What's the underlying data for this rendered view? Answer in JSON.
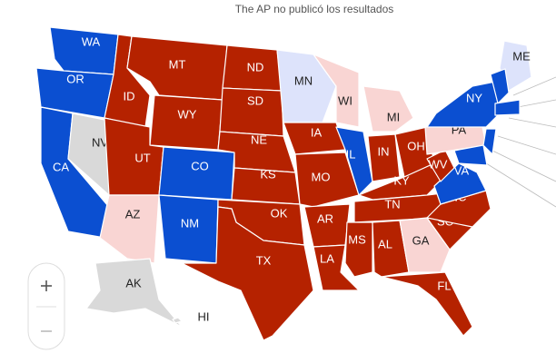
{
  "header": {
    "title": "The AP no publicó los resultados"
  },
  "states": [
    {
      "label": "WA",
      "color": "#0b4fd1"
    },
    {
      "label": "OR",
      "color": "#0b4fd1"
    },
    {
      "label": "CA",
      "color": "#0b4fd1"
    },
    {
      "label": "NV",
      "color": "#d9d9d9"
    },
    {
      "label": "ID",
      "color": "#b52200"
    },
    {
      "label": "MT",
      "color": "#b52200"
    },
    {
      "label": "WY",
      "color": "#b52200"
    },
    {
      "label": "UT",
      "color": "#b52200"
    },
    {
      "label": "AZ",
      "color": "#f9d5d3"
    },
    {
      "label": "CO",
      "color": "#0b4fd1"
    },
    {
      "label": "NM",
      "color": "#0b4fd1"
    },
    {
      "label": "ND",
      "color": "#b52200"
    },
    {
      "label": "SD",
      "color": "#b52200"
    },
    {
      "label": "NE",
      "color": "#b52200"
    },
    {
      "label": "KS",
      "color": "#b52200"
    },
    {
      "label": "OK",
      "color": "#b52200"
    },
    {
      "label": "TX",
      "color": "#b52200"
    },
    {
      "label": "MN",
      "color": "#dde3fb"
    },
    {
      "label": "IA",
      "color": "#b52200"
    },
    {
      "label": "MO",
      "color": "#b52200"
    },
    {
      "label": "AR",
      "color": "#b52200"
    },
    {
      "label": "LA",
      "color": "#b52200"
    },
    {
      "label": "WI",
      "color": "#f9d5d3"
    },
    {
      "label": "IL",
      "color": "#0b4fd1"
    },
    {
      "label": "MI",
      "color": "#f9d5d3"
    },
    {
      "label": "IN",
      "color": "#b52200"
    },
    {
      "label": "OH",
      "color": "#b52200"
    },
    {
      "label": "KY",
      "color": "#b52200"
    },
    {
      "label": "TN",
      "color": "#b52200"
    },
    {
      "label": "MS",
      "color": "#b52200"
    },
    {
      "label": "AL",
      "color": "#b52200"
    },
    {
      "label": "GA",
      "color": "#f9d5d3"
    },
    {
      "label": "FL",
      "color": "#b52200"
    },
    {
      "label": "SC",
      "color": "#b52200"
    },
    {
      "label": "NC",
      "color": "#b52200"
    },
    {
      "label": "VA",
      "color": "#0b4fd1"
    },
    {
      "label": "WV",
      "color": "#b52200"
    },
    {
      "label": "PA",
      "color": "#f9d5d3"
    },
    {
      "label": "NY",
      "color": "#0b4fd1"
    },
    {
      "label": "ME",
      "color": "#dde3fb"
    },
    {
      "label": "AK",
      "color": "#d9d9d9"
    },
    {
      "label": "HI",
      "color": "#d9d9d9"
    }
  ]
}
